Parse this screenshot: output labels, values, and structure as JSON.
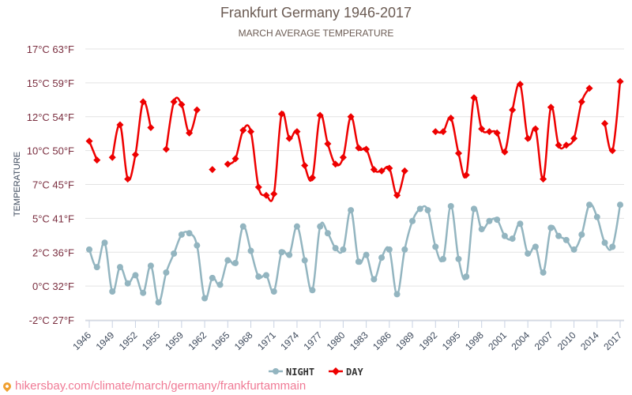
{
  "chart_data": {
    "type": "line",
    "title": "Frankfurt Germany 1946-2017",
    "subtitle": "MARCH AVERAGE TEMPERATURE",
    "ylabel": "TEMPERATURE",
    "xlabel": "",
    "ylim": [
      -2.5,
      17.5
    ],
    "y_ticks": [
      {
        "value": 17.5,
        "label": "17°C 63°F"
      },
      {
        "value": 15,
        "label": "15°C 59°F"
      },
      {
        "value": 12.5,
        "label": "12°C 54°F"
      },
      {
        "value": 10,
        "label": "10°C 50°F"
      },
      {
        "value": 7.5,
        "label": "7°C 45°F"
      },
      {
        "value": 5,
        "label": "5°C 41°F"
      },
      {
        "value": 2.5,
        "label": "2°C 36°F"
      },
      {
        "value": 0,
        "label": "0°C 32°F"
      },
      {
        "value": -2.5,
        "label": "-2°C 27°F"
      }
    ],
    "x_tick_labels": [
      "1946",
      "1949",
      "1952",
      "1955",
      "1959",
      "1962",
      "1965",
      "1968",
      "1971",
      "1974",
      "1977",
      "1980",
      "1983",
      "1986",
      "1989",
      "1992",
      "1995",
      "1998",
      "2001",
      "2004",
      "2007",
      "2010",
      "2014",
      "2017"
    ],
    "x": [
      1946,
      1947,
      1948,
      1949,
      1950,
      1951,
      1952,
      1953,
      1954,
      1955,
      1957,
      1958,
      1959,
      1960,
      1961,
      1962,
      1963,
      1964,
      1965,
      1966,
      1967,
      1968,
      1969,
      1970,
      1971,
      1972,
      1973,
      1974,
      1975,
      1976,
      1977,
      1978,
      1979,
      1980,
      1981,
      1982,
      1983,
      1984,
      1985,
      1986,
      1987,
      1988,
      1989,
      1990,
      1991,
      1992,
      1993,
      1994,
      1995,
      1996,
      1997,
      1998,
      1999,
      2000,
      2001,
      2002,
      2003,
      2004,
      2005,
      2006,
      2007,
      2008,
      2009,
      2010,
      2012,
      2013,
      2014,
      2015,
      2016,
      2017
    ],
    "grid": true,
    "legend": "bottom-center",
    "series": [
      {
        "name": "NIGHT",
        "color": "#93b5c0",
        "values": [
          2.7,
          1.4,
          3.2,
          -0.4,
          1.4,
          0.2,
          0.8,
          -0.5,
          1.5,
          -1.2,
          1.0,
          2.4,
          3.8,
          3.9,
          3.0,
          -0.9,
          0.6,
          0.1,
          1.9,
          1.7,
          4.4,
          2.6,
          0.7,
          0.8,
          -0.4,
          2.5,
          2.3,
          4.4,
          1.9,
          -0.3,
          4.4,
          3.9,
          2.8,
          2.7,
          5.6,
          1.8,
          2.3,
          0.5,
          2.1,
          2.7,
          -0.6,
          2.7,
          4.8,
          5.7,
          5.6,
          2.9,
          2.0,
          5.9,
          2.0,
          0.7,
          5.7,
          4.2,
          4.8,
          4.9,
          3.7,
          3.5,
          4.6,
          2.4,
          2.9,
          1.0,
          4.3,
          3.7,
          3.4,
          2.7,
          3.8,
          6.0,
          5.1,
          3.2,
          2.9,
          6.0
        ]
      },
      {
        "name": "DAY",
        "color": "#ee0000",
        "values": [
          10.7,
          9.3,
          null,
          9.5,
          11.9,
          7.9,
          9.7,
          13.6,
          11.7,
          null,
          10.1,
          13.6,
          13.4,
          11.3,
          13.0,
          null,
          8.6,
          null,
          9.0,
          9.4,
          11.5,
          11.4,
          7.3,
          6.7,
          6.8,
          12.7,
          10.9,
          11.4,
          8.9,
          8.0,
          12.6,
          10.5,
          9.0,
          9.5,
          12.5,
          10.2,
          10.1,
          8.6,
          8.5,
          8.7,
          6.7,
          8.5,
          null,
          null,
          null,
          11.4,
          11.4,
          12.4,
          9.8,
          8.2,
          13.9,
          11.6,
          11.4,
          11.3,
          9.9,
          13.0,
          14.9,
          10.9,
          11.6,
          7.9,
          13.2,
          10.4,
          10.4,
          10.9,
          13.6,
          14.6,
          null,
          12.0,
          10.0,
          15.1
        ]
      }
    ]
  },
  "legend": {
    "night_label": "NIGHT",
    "day_label": "DAY"
  },
  "source": {
    "text": "hikersbay.com/climate/march/germany/frankfurtammain"
  }
}
